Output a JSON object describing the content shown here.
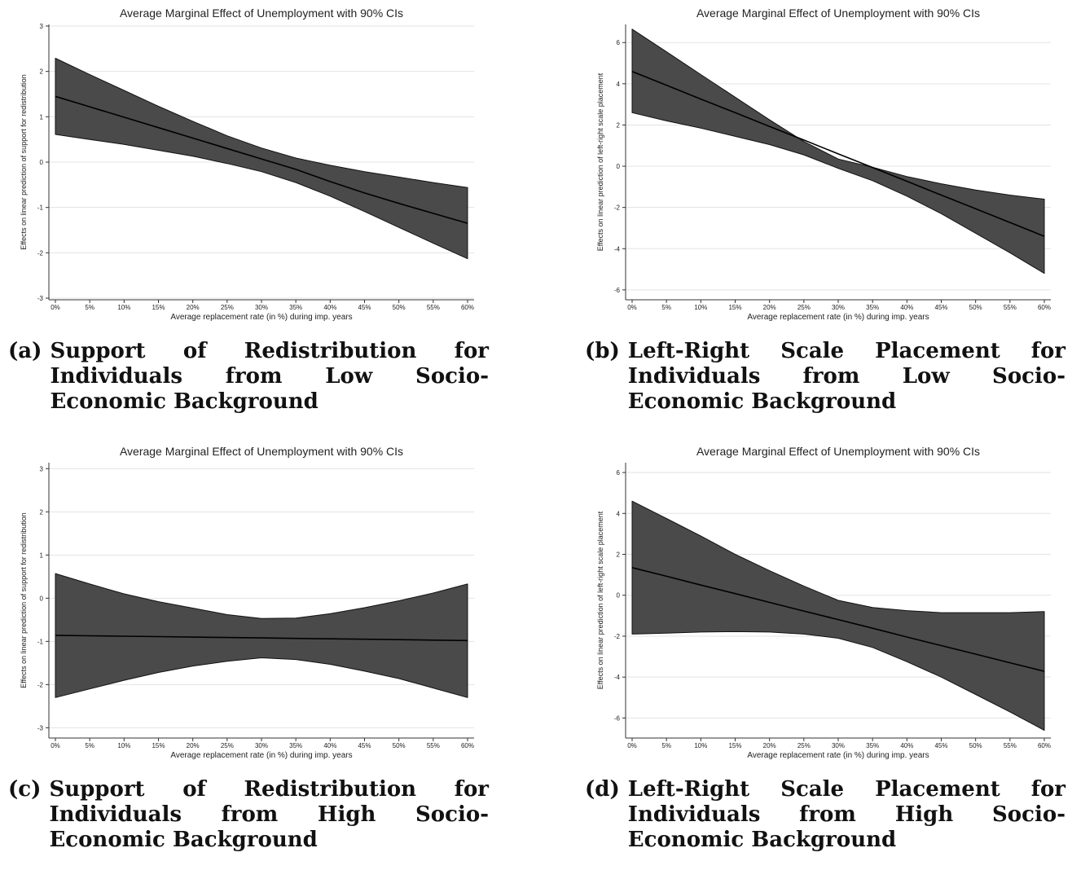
{
  "charts": [
    {
      "caption_label": "(a)",
      "caption_text": "Support of Redistribution for Individuals from Low Socio-Economic Background",
      "chart_data": {
        "type": "area",
        "title": "Average Marginal Effect of Unemployment with 90% CIs",
        "xlabel": "Average replacement rate (in %) during imp. years",
        "ylabel": "Effects on linear prediction of support for redistribution",
        "x_ticks": [
          "0%",
          "5%",
          "10%",
          "15%",
          "20%",
          "25%",
          "30%",
          "35%",
          "40%",
          "45%",
          "50%",
          "55%",
          "60%"
        ],
        "y_ticks": [
          -3,
          -2,
          -1,
          0,
          1,
          2,
          3
        ],
        "ylim": [
          -3,
          3
        ],
        "grid": true,
        "x": [
          0,
          5,
          10,
          15,
          20,
          25,
          30,
          35,
          40,
          45,
          50,
          55,
          60
        ],
        "series": [
          {
            "role": "estimate",
            "values": [
              1.45,
              1.22,
              0.99,
              0.76,
              0.53,
              0.3,
              0.07,
              -0.16,
              -0.43,
              -0.68,
              -0.91,
              -1.13,
              -1.35
            ]
          },
          {
            "role": "upper",
            "values": [
              2.29,
              1.93,
              1.58,
              1.23,
              0.9,
              0.58,
              0.31,
              0.09,
              -0.07,
              -0.21,
              -0.33,
              -0.45,
              -0.56
            ]
          },
          {
            "role": "lower",
            "values": [
              0.61,
              0.5,
              0.39,
              0.26,
              0.13,
              -0.03,
              -0.21,
              -0.45,
              -0.75,
              -1.09,
              -1.44,
              -1.79,
              -2.13
            ]
          }
        ]
      }
    },
    {
      "caption_label": "(b)",
      "caption_text": "Left-Right Scale Placement for Individuals from Low Socio-Economic Background",
      "chart_data": {
        "type": "area",
        "title": "Average Marginal Effect of Unemployment with 90% CIs",
        "xlabel": "Average replacement rate (in %) during imp. years",
        "ylabel": "Effects on linear prediction of left-right scale placement",
        "x_ticks": [
          "0%",
          "5%",
          "10%",
          "15%",
          "20%",
          "25%",
          "30%",
          "35%",
          "40%",
          "45%",
          "50%",
          "55%",
          "60%"
        ],
        "y_ticks": [
          -6,
          -4,
          -2,
          0,
          2,
          4,
          6
        ],
        "ylim": [
          -6.4,
          6.8
        ],
        "grid": true,
        "x": [
          0,
          5,
          10,
          15,
          20,
          25,
          30,
          35,
          40,
          45,
          50,
          55,
          60
        ],
        "series": [
          {
            "role": "estimate",
            "values": [
              4.6,
              3.93,
              3.26,
              2.6,
              1.93,
              1.27,
              0.6,
              -0.06,
              -0.73,
              -1.4,
              -2.06,
              -2.73,
              -3.4
            ]
          },
          {
            "role": "upper",
            "values": [
              6.65,
              5.55,
              4.45,
              3.35,
              2.25,
              1.2,
              0.35,
              -0.05,
              -0.5,
              -0.85,
              -1.15,
              -1.4,
              -1.6
            ]
          },
          {
            "role": "lower",
            "values": [
              2.6,
              2.2,
              1.85,
              1.45,
              1.05,
              0.55,
              -0.1,
              -0.7,
              -1.45,
              -2.3,
              -3.25,
              -4.2,
              -5.2
            ]
          }
        ]
      }
    },
    {
      "caption_label": "(c)",
      "caption_text": "Support of Redistribution for Individuals from High Socio-Economic Background",
      "chart_data": {
        "type": "area",
        "title": "Average Marginal Effect of Unemployment with 90% CIs",
        "xlabel": "Average replacement rate (in %) during imp. years",
        "ylabel": "Effects on linear prediction of support for redistribution",
        "x_ticks": [
          "0%",
          "5%",
          "10%",
          "15%",
          "20%",
          "25%",
          "30%",
          "35%",
          "40%",
          "45%",
          "50%",
          "55%",
          "60%"
        ],
        "y_ticks": [
          -3,
          -2,
          -1,
          0,
          1,
          2,
          3
        ],
        "ylim": [
          -3.2,
          3.1
        ],
        "grid": true,
        "x": [
          0,
          5,
          10,
          15,
          20,
          25,
          30,
          35,
          40,
          45,
          50,
          55,
          60
        ],
        "series": [
          {
            "role": "estimate",
            "values": [
              -0.86,
              -0.87,
              -0.88,
              -0.89,
              -0.9,
              -0.91,
              -0.92,
              -0.93,
              -0.94,
              -0.95,
              -0.96,
              -0.97,
              -0.98
            ]
          },
          {
            "role": "upper",
            "values": [
              0.57,
              0.33,
              0.1,
              -0.08,
              -0.23,
              -0.38,
              -0.47,
              -0.46,
              -0.36,
              -0.22,
              -0.06,
              0.12,
              0.33
            ]
          },
          {
            "role": "lower",
            "values": [
              -2.3,
              -2.1,
              -1.9,
              -1.72,
              -1.57,
              -1.46,
              -1.38,
              -1.42,
              -1.53,
              -1.69,
              -1.86,
              -2.08,
              -2.3
            ]
          }
        ]
      }
    },
    {
      "caption_label": "(d)",
      "caption_text": "Left-Right Scale Placement for Individuals from High Socio-Economic Background",
      "chart_data": {
        "type": "area",
        "title": "Average Marginal Effect of Unemployment with 90% CIs",
        "xlabel": "Average replacement rate (in %) during imp. years",
        "ylabel": "Effects on linear prediction of left-right scale placement",
        "x_ticks": [
          "0%",
          "5%",
          "10%",
          "15%",
          "20%",
          "25%",
          "30%",
          "35%",
          "40%",
          "45%",
          "50%",
          "55%",
          "60%"
        ],
        "y_ticks": [
          -6,
          -4,
          -2,
          0,
          2,
          4,
          6
        ],
        "ylim": [
          -6.9,
          6.4
        ],
        "grid": true,
        "x": [
          0,
          5,
          10,
          15,
          20,
          25,
          30,
          35,
          40,
          45,
          50,
          55,
          60
        ],
        "series": [
          {
            "role": "estimate",
            "values": [
              1.35,
              0.93,
              0.5,
              0.08,
              -0.35,
              -0.77,
              -1.19,
              -1.61,
              -2.04,
              -2.46,
              -2.88,
              -3.3,
              -3.72
            ]
          },
          {
            "role": "upper",
            "values": [
              4.6,
              3.75,
              2.9,
              2.0,
              1.2,
              0.45,
              -0.25,
              -0.6,
              -0.75,
              -0.85,
              -0.85,
              -0.85,
              -0.8
            ]
          },
          {
            "role": "lower",
            "values": [
              -1.9,
              -1.85,
              -1.8,
              -1.78,
              -1.8,
              -1.9,
              -2.1,
              -2.55,
              -3.25,
              -4.0,
              -4.85,
              -5.7,
              -6.6
            ]
          }
        ]
      }
    }
  ]
}
